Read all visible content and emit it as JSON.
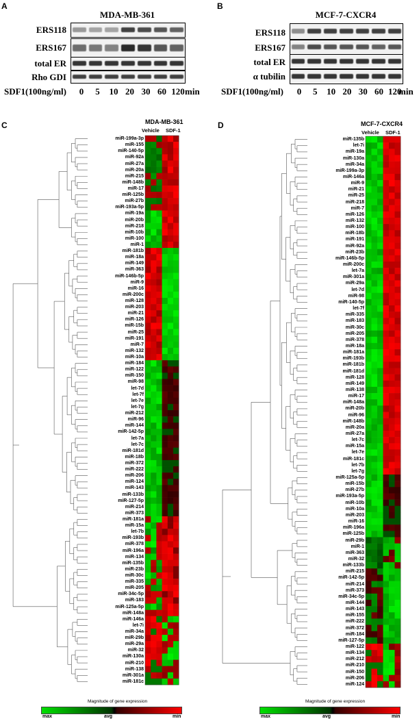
{
  "panels": {
    "A": {
      "letter": "A",
      "title": "MDA-MB-361",
      "rows": [
        "ERS118",
        "ERS167",
        "total ER",
        "Rho GDI"
      ],
      "sdf_label": "SDF1(100ng/ml)",
      "ticks": [
        "0",
        "5",
        "10",
        "20",
        "30",
        "60",
        "120"
      ],
      "unit": "min"
    },
    "B": {
      "letter": "B",
      "title": "MCF-7-CXCR4",
      "rows": [
        "ERS118",
        "ERS167",
        "total ER",
        "α tubilin"
      ],
      "sdf_label": "SDF1(100ng/ml)",
      "ticks": [
        "0",
        "5",
        "10",
        "20",
        "30",
        "60",
        "120"
      ],
      "unit": "min"
    },
    "C": {
      "letter": "C",
      "title": "MDA-MB-361",
      "col_vehicle": "Vehicle",
      "col_sdf": "SDF-1",
      "legend_title": "Magnitude of gene expression",
      "legend_max": "max",
      "legend_avg": "avg",
      "legend_min": "min",
      "genes": [
        "miR-199a-3p",
        "miR-155",
        "miR-140-5p",
        "miR-92a",
        "miR-27a",
        "miR-20a",
        "miR-215",
        "miR-148b",
        "miR-17",
        "miR-125b",
        "miR-27b",
        "miR-193a-5p",
        "miR-19a",
        "miR-20b",
        "miR-218",
        "miR-10b",
        "miR-100",
        "miR-1",
        "miR-181b",
        "miR-18a",
        "miR-149",
        "miR-363",
        "miR-146b-5p",
        "miR-9",
        "miR-16",
        "miR-200c",
        "miR-128",
        "miR-203",
        "miR-21",
        "miR-126",
        "miR-15b",
        "miR-25",
        "miR-191",
        "miR-7",
        "miR-132",
        "miR-10a",
        "miR-184",
        "miR-122",
        "miR-150",
        "miR-98",
        "let-7d",
        "let-7f",
        "let-7e",
        "let-7g",
        "miR-212",
        "miR-96",
        "miR-144",
        "miR-142-5p",
        "let-7a",
        "let-7c",
        "miR-181d",
        "miR-18b",
        "miR-372",
        "miR-222",
        "miR-206",
        "miR-124",
        "miR-143",
        "miR-133b",
        "miR-127-5p",
        "miR-214",
        "miR-373",
        "miR-181a",
        "miR-15a",
        "let-7b",
        "miR-193b",
        "miR-378",
        "miR-196a",
        "miR-134",
        "miR-135b",
        "miR-23b",
        "miR-30c",
        "miR-335",
        "miR-205",
        "miR-34c-5p",
        "miR-183",
        "miR-125a-5p",
        "miR-148a",
        "miR-146a",
        "let-7i",
        "miR-34a",
        "miR-29b",
        "miR-29a",
        "miR-32",
        "miR-130a",
        "miR-210",
        "miR-138",
        "miR-301a",
        "miR-181c"
      ],
      "blocks": [
        {
          "count": 12,
          "pattern": "vg_sr"
        },
        {
          "count": 6,
          "pattern": "vgreen_sred"
        },
        {
          "count": 18,
          "pattern": "vred_sgreen"
        },
        {
          "count": 25,
          "pattern": "vgreen_sdark"
        },
        {
          "count": 16,
          "pattern": "vmixed_sred"
        },
        {
          "count": 11,
          "pattern": "vred_sgreen2"
        }
      ]
    },
    "D": {
      "letter": "D",
      "title": "MCF-7-CXCR4",
      "col_vehicle": "Vehicle",
      "col_sdf": "SDF-1",
      "legend_title": "Magnitude of gene expression",
      "legend_max": "max",
      "legend_avg": "avg",
      "legend_min": "min",
      "genes": [
        "miR-135b",
        "let-7i",
        "miR-19a",
        "miR-130a",
        "miR-34a",
        "miR-199a-3p",
        "miR-146a",
        "miR-9",
        "miR-21",
        "miR-25",
        "miR-218",
        "miR-7",
        "miR-126",
        "miR-132",
        "miR-100",
        "miR-18b",
        "miR-191",
        "miR-92a",
        "miR-23b",
        "miR-146b-5p",
        "miR-200c",
        "let-7a",
        "miR-301a",
        "miR-29a",
        "let-7d",
        "miR-98",
        "miR-140-5p",
        "let-7f",
        "miR-335",
        "miR-183",
        "miR-30c",
        "miR-205",
        "miR-378",
        "miR-18a",
        "miR-181a",
        "miR-193b",
        "miR-181b",
        "miR-181d",
        "miR-128",
        "miR-149",
        "miR-138",
        "miR-17",
        "miR-148a",
        "miR-20b",
        "miR-96",
        "miR-148b",
        "miR-20a",
        "miR-27a",
        "let-7c",
        "miR-15a",
        "let-7e",
        "miR-181c",
        "let-7b",
        "let-7g",
        "miR-125a-5p",
        "miR-15b",
        "miR-27b",
        "miR-193a-5p",
        "miR-10b",
        "miR-10a",
        "miR-203",
        "miR-16",
        "miR-196a",
        "miR-125b",
        "miR-29b",
        "miR-1",
        "miR-363",
        "miR-32",
        "miR-133b",
        "miR-215",
        "miR-142-5p",
        "miR-214",
        "miR-373",
        "miR-34c-5p",
        "miR-144",
        "miR-143",
        "miR-155",
        "miR-222",
        "miR-372",
        "miR-184",
        "miR-127-5p",
        "miR-122",
        "miR-134",
        "miR-212",
        "miR-210",
        "miR-150",
        "miR-206",
        "miR-124"
      ],
      "blocks": [
        {
          "count": 54,
          "pattern": "vgreen_sred"
        },
        {
          "count": 10,
          "pattern": "vgreen_sdark"
        },
        {
          "count": 5,
          "pattern": "vdark_smixed"
        },
        {
          "count": 12,
          "pattern": "vdark_sgreen"
        },
        {
          "count": 7,
          "pattern": "vred_sgreen2"
        }
      ]
    }
  },
  "colors": {
    "green": "#00e000",
    "black": "#000000",
    "red": "#ff0000"
  }
}
